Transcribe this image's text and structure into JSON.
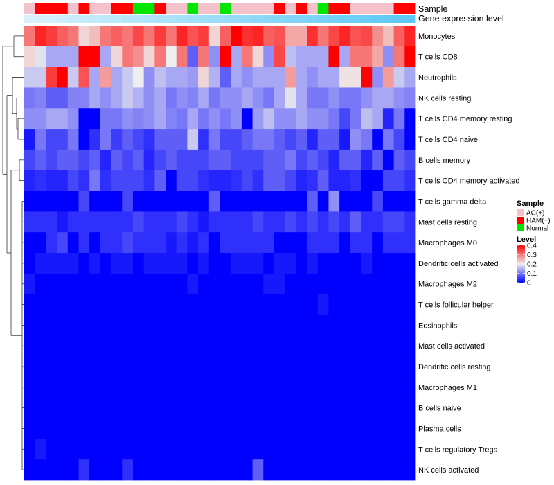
{
  "chart_data": {
    "type": "heatmap",
    "title": "",
    "annotation_labels": [
      "Sample",
      "Gene expression level"
    ],
    "rows": [
      "Monocytes",
      "T cells CD8",
      "Neutrophils",
      "NK cells resting",
      "T cells CD4 memory resting",
      "T cells CD4 naive",
      "B cells memory",
      "T cells CD4 memory activated",
      "T cells gamma delta",
      "Mast cells resting",
      "Macrophages M0",
      "Dendritic cells activated",
      "Macrophages M2",
      "T cells follicular helper",
      "Eosinophils",
      "Mast cells activated",
      "Dendritic cells resting",
      "Macrophages M1",
      "B cells naive",
      "Plasma cells",
      "T cells regulatory  Tregs",
      "NK cells activated"
    ],
    "sample_groups": [
      "AC",
      "HAM",
      "HAM",
      "HAM",
      "AC",
      "HAM",
      "AC",
      "AC",
      "HAM",
      "HAM",
      "Normal",
      "Normal",
      "HAM",
      "AC",
      "AC",
      "Normal",
      "AC",
      "AC",
      "Normal",
      "AC",
      "AC",
      "AC",
      "AC",
      "HAM",
      "AC",
      "HAM",
      "AC",
      "Normal",
      "HAM",
      "HAM",
      "AC",
      "AC",
      "AC",
      "AC",
      "HAM",
      "HAM"
    ],
    "values": [
      [
        0.3,
        0.37,
        0.35,
        0.32,
        0.3,
        0.22,
        0.24,
        0.3,
        0.32,
        0.3,
        0.34,
        0.3,
        0.35,
        0.3,
        0.37,
        0.33,
        0.35,
        0.22,
        0.32,
        0.4,
        0.36,
        0.37,
        0.32,
        0.33,
        0.26,
        0.26,
        0.36,
        0.3,
        0.34,
        0.37,
        0.33,
        0.34,
        0.28,
        0.24,
        0.32,
        0.37
      ],
      [
        0.22,
        0.19,
        0.14,
        0.14,
        0.14,
        0.4,
        0.4,
        0.14,
        0.22,
        0.3,
        0.28,
        0.22,
        0.3,
        0.2,
        0.3,
        0.08,
        0.3,
        0.12,
        0.4,
        0.14,
        0.3,
        0.22,
        0.12,
        0.34,
        0.16,
        0.14,
        0.14,
        0.14,
        0.4,
        0.14,
        0.3,
        0.3,
        0.26,
        0.12,
        0.3,
        0.4
      ],
      [
        0.17,
        0.17,
        0.35,
        0.4,
        0.17,
        0.33,
        0.14,
        0.27,
        0.14,
        0.17,
        0.2,
        0.12,
        0.16,
        0.14,
        0.14,
        0.13,
        0.22,
        0.15,
        0.08,
        0.14,
        0.12,
        0.14,
        0.14,
        0.14,
        0.27,
        0.14,
        0.12,
        0.14,
        0.14,
        0.21,
        0.21,
        0.4,
        0.12,
        0.27,
        0.17,
        0.14
      ],
      [
        0.1,
        0.11,
        0.08,
        0.08,
        0.11,
        0.11,
        0.14,
        0.12,
        0.14,
        0.17,
        0.15,
        0.12,
        0.14,
        0.1,
        0.12,
        0.11,
        0.14,
        0.1,
        0.12,
        0.12,
        0.14,
        0.12,
        0.1,
        0.14,
        0.19,
        0.14,
        0.1,
        0.1,
        0.12,
        0.1,
        0.1,
        0.12,
        0.14,
        0.14,
        0.12,
        0.11
      ],
      [
        0.12,
        0.12,
        0.14,
        0.14,
        0.12,
        0.0,
        0.0,
        0.1,
        0.1,
        0.12,
        0.11,
        0.12,
        0.14,
        0.11,
        0.1,
        0.14,
        0.1,
        0.12,
        0.1,
        0.12,
        0.0,
        0.13,
        0.16,
        0.12,
        0.12,
        0.14,
        0.12,
        0.12,
        0.1,
        0.06,
        0.1,
        0.16,
        0.14,
        0.03,
        0.1,
        0.0
      ],
      [
        0.02,
        0.1,
        0.06,
        0.06,
        0.1,
        0.0,
        0.04,
        0.1,
        0.05,
        0.08,
        0.06,
        0.04,
        0.08,
        0.08,
        0.08,
        0.17,
        0.04,
        0.1,
        0.06,
        0.06,
        0.08,
        0.1,
        0.1,
        0.08,
        0.06,
        0.08,
        0.03,
        0.08,
        0.08,
        0.02,
        0.12,
        0.1,
        0.0,
        0.1,
        0.06,
        0.0
      ],
      [
        0.06,
        0.08,
        0.06,
        0.08,
        0.08,
        0.06,
        0.08,
        0.03,
        0.08,
        0.06,
        0.08,
        0.03,
        0.06,
        0.08,
        0.06,
        0.06,
        0.06,
        0.08,
        0.08,
        0.06,
        0.06,
        0.06,
        0.08,
        0.08,
        0.1,
        0.06,
        0.08,
        0.06,
        0.03,
        0.08,
        0.08,
        0.03,
        0.08,
        0.0,
        0.08,
        0.06
      ],
      [
        0.03,
        0.04,
        0.03,
        0.03,
        0.06,
        0.04,
        0.1,
        0.04,
        0.06,
        0.06,
        0.06,
        0.04,
        0.08,
        0.0,
        0.06,
        0.06,
        0.04,
        0.03,
        0.03,
        0.04,
        0.06,
        0.04,
        0.08,
        0.08,
        0.06,
        0.03,
        0.04,
        0.08,
        0.03,
        0.03,
        0.04,
        0.0,
        0.0,
        0.06,
        0.06,
        0.04
      ],
      [
        0.0,
        0.0,
        0.0,
        0.0,
        0.0,
        0.06,
        0.0,
        0.0,
        0.0,
        0.06,
        0.0,
        0.0,
        0.0,
        0.0,
        0.0,
        0.0,
        0.0,
        0.08,
        0.0,
        0.0,
        0.0,
        0.0,
        0.0,
        0.0,
        0.0,
        0.0,
        0.08,
        0.0,
        0.12,
        0.0,
        0.0,
        0.0,
        0.06,
        0.0,
        0.0,
        0.0
      ],
      [
        0.04,
        0.04,
        0.04,
        0.02,
        0.04,
        0.04,
        0.04,
        0.04,
        0.04,
        0.04,
        0.06,
        0.04,
        0.04,
        0.04,
        0.06,
        0.04,
        0.02,
        0.04,
        0.04,
        0.04,
        0.04,
        0.06,
        0.04,
        0.04,
        0.06,
        0.04,
        0.06,
        0.04,
        0.06,
        0.04,
        0.08,
        0.04,
        0.04,
        0.06,
        0.06,
        0.04
      ],
      [
        0.0,
        0.0,
        0.04,
        0.06,
        0.0,
        0.04,
        0.0,
        0.04,
        0.04,
        0.06,
        0.04,
        0.04,
        0.04,
        0.02,
        0.04,
        0.02,
        0.04,
        0.0,
        0.04,
        0.04,
        0.04,
        0.04,
        0.04,
        0.0,
        0.0,
        0.0,
        0.04,
        0.04,
        0.04,
        0.0,
        0.04,
        0.04,
        0.0,
        0.04,
        0.04,
        0.04
      ],
      [
        0.0,
        0.02,
        0.02,
        0.02,
        0.02,
        0.0,
        0.02,
        0.0,
        0.02,
        0.02,
        0.0,
        0.02,
        0.02,
        0.02,
        0.02,
        0.0,
        0.02,
        0.0,
        0.0,
        0.02,
        0.02,
        0.02,
        0.0,
        0.02,
        0.02,
        0.0,
        0.02,
        0.0,
        0.0,
        0.0,
        0.0,
        0.02,
        0.0,
        0.0,
        0.0,
        0.0
      ],
      [
        0.02,
        0.0,
        0.0,
        0.0,
        0.0,
        0.0,
        0.0,
        0.0,
        0.0,
        0.0,
        0.0,
        0.0,
        0.0,
        0.0,
        0.0,
        0.02,
        0.0,
        0.0,
        0.0,
        0.0,
        0.0,
        0.0,
        0.02,
        0.02,
        0.0,
        0.0,
        0.0,
        0.0,
        0.0,
        0.0,
        0.0,
        0.0,
        0.0,
        0.0,
        0.0,
        0.0
      ],
      [
        0.0,
        0.0,
        0.0,
        0.0,
        0.0,
        0.0,
        0.0,
        0.0,
        0.0,
        0.0,
        0.0,
        0.0,
        0.0,
        0.0,
        0.0,
        0.0,
        0.0,
        0.0,
        0.0,
        0.0,
        0.0,
        0.0,
        0.0,
        0.0,
        0.0,
        0.0,
        0.0,
        0.02,
        0.0,
        0.0,
        0.0,
        0.0,
        0.0,
        0.0,
        0.0,
        0.0
      ],
      [
        0.0,
        0.0,
        0.0,
        0.0,
        0.0,
        0.0,
        0.0,
        0.0,
        0.0,
        0.0,
        0.0,
        0.0,
        0.0,
        0.0,
        0.0,
        0.0,
        0.0,
        0.0,
        0.0,
        0.0,
        0.0,
        0.0,
        0.0,
        0.0,
        0.0,
        0.0,
        0.0,
        0.0,
        0.0,
        0.0,
        0.0,
        0.0,
        0.0,
        0.0,
        0.0,
        0.0
      ],
      [
        0.0,
        0.0,
        0.0,
        0.0,
        0.0,
        0.0,
        0.0,
        0.0,
        0.0,
        0.0,
        0.0,
        0.0,
        0.0,
        0.0,
        0.0,
        0.0,
        0.0,
        0.0,
        0.0,
        0.0,
        0.0,
        0.0,
        0.0,
        0.0,
        0.0,
        0.0,
        0.0,
        0.0,
        0.0,
        0.0,
        0.0,
        0.0,
        0.0,
        0.0,
        0.0,
        0.0
      ],
      [
        0.0,
        0.0,
        0.0,
        0.0,
        0.0,
        0.0,
        0.0,
        0.0,
        0.0,
        0.0,
        0.0,
        0.0,
        0.0,
        0.0,
        0.0,
        0.0,
        0.0,
        0.0,
        0.0,
        0.0,
        0.0,
        0.0,
        0.0,
        0.0,
        0.0,
        0.0,
        0.0,
        0.0,
        0.0,
        0.0,
        0.0,
        0.0,
        0.0,
        0.0,
        0.0,
        0.0
      ],
      [
        0.0,
        0.0,
        0.0,
        0.0,
        0.0,
        0.0,
        0.0,
        0.0,
        0.0,
        0.0,
        0.0,
        0.0,
        0.0,
        0.0,
        0.0,
        0.0,
        0.0,
        0.0,
        0.0,
        0.0,
        0.0,
        0.0,
        0.0,
        0.0,
        0.0,
        0.0,
        0.0,
        0.0,
        0.0,
        0.0,
        0.0,
        0.0,
        0.0,
        0.0,
        0.0,
        0.0
      ],
      [
        0.0,
        0.0,
        0.0,
        0.0,
        0.0,
        0.0,
        0.0,
        0.0,
        0.0,
        0.0,
        0.0,
        0.0,
        0.0,
        0.0,
        0.0,
        0.0,
        0.0,
        0.0,
        0.0,
        0.0,
        0.0,
        0.0,
        0.0,
        0.0,
        0.0,
        0.0,
        0.0,
        0.0,
        0.0,
        0.0,
        0.0,
        0.0,
        0.0,
        0.0,
        0.0,
        0.0
      ],
      [
        0.0,
        0.0,
        0.0,
        0.0,
        0.0,
        0.0,
        0.0,
        0.0,
        0.0,
        0.0,
        0.0,
        0.0,
        0.0,
        0.0,
        0.0,
        0.0,
        0.0,
        0.0,
        0.0,
        0.0,
        0.0,
        0.0,
        0.0,
        0.0,
        0.0,
        0.0,
        0.0,
        0.0,
        0.0,
        0.0,
        0.0,
        0.0,
        0.0,
        0.0,
        0.0,
        0.0
      ],
      [
        0.0,
        0.02,
        0.0,
        0.0,
        0.0,
        0.0,
        0.0,
        0.0,
        0.0,
        0.0,
        0.0,
        0.0,
        0.0,
        0.0,
        0.0,
        0.0,
        0.0,
        0.0,
        0.0,
        0.0,
        0.0,
        0.0,
        0.0,
        0.0,
        0.0,
        0.0,
        0.0,
        0.0,
        0.0,
        0.0,
        0.0,
        0.0,
        0.0,
        0.0,
        0.0,
        0.0
      ],
      [
        0.0,
        0.0,
        0.0,
        0.0,
        0.0,
        0.04,
        0.0,
        0.0,
        0.0,
        0.04,
        0.0,
        0.0,
        0.0,
        0.0,
        0.0,
        0.0,
        0.0,
        0.0,
        0.0,
        0.0,
        0.0,
        0.08,
        0.0,
        0.0,
        0.0,
        0.0,
        0.0,
        0.0,
        0.0,
        0.0,
        0.0,
        0.0,
        0.0,
        0.0,
        0.0,
        0.0
      ]
    ],
    "value_range": [
      0,
      0.4
    ],
    "group_colors": {
      "AC": "#F4C2CB",
      "HAM": "#FF0000",
      "Normal": "#00E600"
    },
    "expression_bar_colors": [
      "#D8F1FB",
      "#5BC8F5"
    ],
    "color_scale": {
      "low": "#0000FF",
      "mid": "#EEEEEE",
      "high": "#FF0000",
      "mid_value": 0.2
    },
    "legend": {
      "sample": {
        "title": "Sample",
        "entries": [
          {
            "key": "AC",
            "label": "AC(+)"
          },
          {
            "key": "HAM",
            "label": "HAM(+)"
          },
          {
            "key": "Normal",
            "label": "Normal"
          }
        ]
      },
      "level": {
        "title": "Level",
        "ticks": [
          "0.4",
          "0.3",
          "0.2",
          "0.1",
          "0"
        ],
        "tick_values": [
          0.4,
          0.3,
          0.2,
          0.1,
          0
        ]
      }
    },
    "dendrogram": "rows (left side)"
  }
}
